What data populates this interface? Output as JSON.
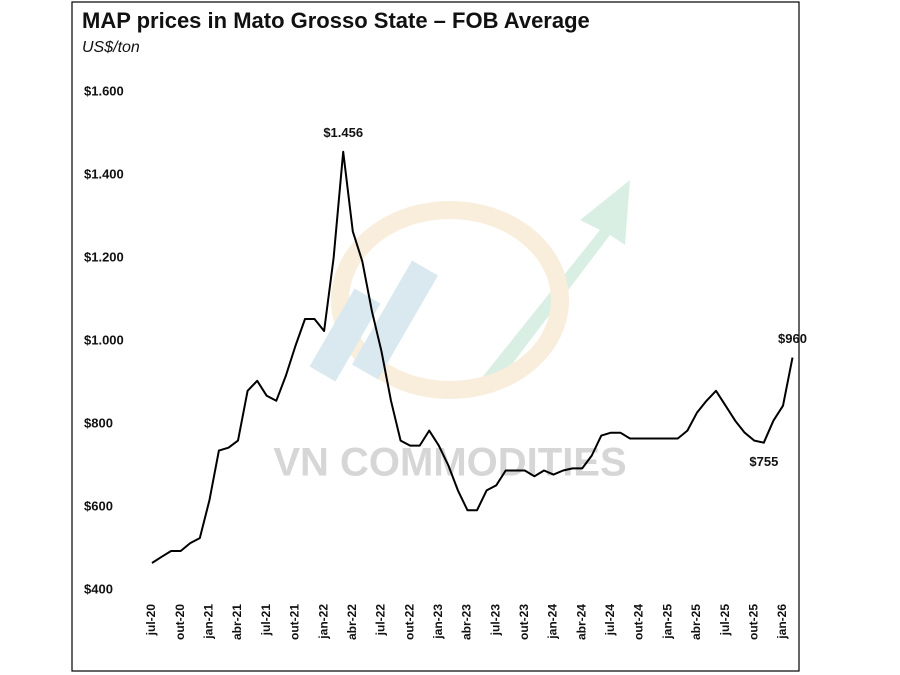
{
  "chart_data": {
    "type": "line",
    "title": "MAP prices in Mato Grosso State – FOB Average",
    "subtitle": "US$/ton",
    "watermark": "VN COMMODITIES",
    "color": "#000000",
    "categories": [
      "jul-20",
      null,
      null,
      "out-20",
      null,
      null,
      "jan-21",
      null,
      null,
      "abr-21",
      null,
      null,
      "jul-21",
      null,
      null,
      "out-21",
      null,
      null,
      "jan-22",
      null,
      null,
      "abr-22",
      null,
      null,
      "jul-22",
      null,
      null,
      "out-22",
      null,
      null,
      "jan-23",
      null,
      null,
      "abr-23",
      null,
      null,
      "jul-23",
      null,
      null,
      "out-23",
      null,
      null,
      "jan-24",
      null,
      null,
      "abr-24",
      null,
      null,
      "jul-24",
      null,
      null,
      "out-24",
      null,
      null,
      "jan-25",
      null,
      null,
      "abr-25",
      null,
      null,
      "jul-25",
      null,
      null,
      "out-25",
      null,
      null,
      "jan-26",
      null
    ],
    "values": [
      465,
      480,
      494,
      494,
      513,
      525,
      616,
      736,
      743,
      760,
      880,
      904,
      868,
      856,
      916,
      988,
      1053,
      1053,
      1024,
      1200,
      1456,
      1264,
      1192,
      1072,
      976,
      856,
      760,
      748,
      748,
      784,
      748,
      700,
      640,
      592,
      592,
      640,
      652,
      688,
      688,
      688,
      674,
      688,
      678,
      688,
      693,
      693,
      724,
      772,
      779,
      779,
      765,
      765,
      765,
      765,
      765,
      765,
      784,
      827,
      856,
      880,
      844,
      808,
      779,
      760,
      755,
      808,
      844,
      960
    ],
    "value_labels": [
      null,
      null,
      null,
      null,
      null,
      null,
      null,
      null,
      null,
      null,
      null,
      null,
      null,
      null,
      null,
      null,
      null,
      null,
      null,
      null,
      "$1.456",
      null,
      null,
      null,
      null,
      null,
      null,
      null,
      null,
      null,
      null,
      null,
      null,
      null,
      null,
      null,
      null,
      null,
      null,
      null,
      null,
      null,
      null,
      null,
      null,
      null,
      null,
      null,
      null,
      null,
      null,
      null,
      null,
      null,
      null,
      null,
      null,
      null,
      null,
      null,
      null,
      null,
      null,
      null,
      "$755",
      null,
      null,
      "$960"
    ],
    "ylim": [
      400,
      1600
    ],
    "yticks": [
      {
        "value": 400,
        "label": "$400"
      },
      {
        "value": 600,
        "label": "$600"
      },
      {
        "value": 800,
        "label": "$800"
      },
      {
        "value": 1000,
        "label": "$1.000"
      },
      {
        "value": 1200,
        "label": "$1.200"
      },
      {
        "value": 1400,
        "label": "$1.400"
      },
      {
        "value": 1600,
        "label": "$1.600"
      }
    ],
    "grid": false
  }
}
